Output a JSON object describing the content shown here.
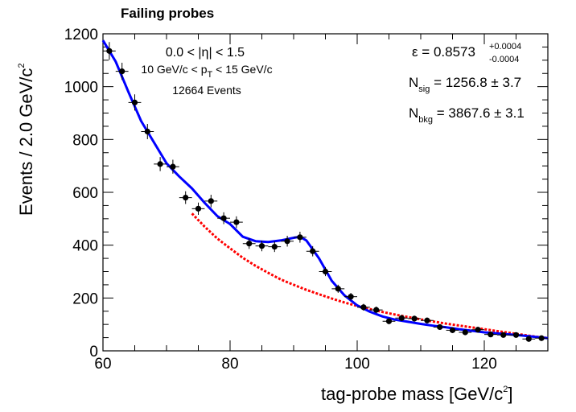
{
  "chart_data": {
    "type": "scatter",
    "title": "Failing probes",
    "xlabel": "tag-probe mass [GeV/c",
    "xlabel_sup": "2",
    "xlabel_tail": "]",
    "ylabel": "Events / 2.0 GeV/c",
    "ylabel_sup": "2",
    "xlim": [
      60,
      130
    ],
    "ylim": [
      0,
      1200
    ],
    "x_ticks": [
      60,
      80,
      100,
      120
    ],
    "y_ticks": [
      0,
      200,
      400,
      600,
      800,
      1000,
      1200
    ],
    "grid": false,
    "annotations": {
      "eta_cut": "0.0 < |η| < 1.5",
      "pt_cut_a": "10 GeV/c < p",
      "pt_cut_sub": "T",
      "pt_cut_b": " < 15 GeV/c",
      "events": "12664 Events",
      "eff_label": "ε = 0.8573",
      "eff_up": "+0.0004",
      "eff_down": "-0.0004",
      "nsig_label": "N",
      "nsig_sub": "sig",
      "nsig_value": " = 1256.8  ± 3.7",
      "nbkg_label": "N",
      "nbkg_sub": "bkg",
      "nbkg_value": " = 3867.6  ± 3.1"
    },
    "data_points": {
      "x": [
        61,
        63,
        65,
        67,
        69,
        71,
        73,
        75,
        77,
        79,
        81,
        83,
        85,
        87,
        89,
        91,
        93,
        95,
        97,
        99,
        101,
        103,
        105,
        107,
        109,
        111,
        113,
        115,
        117,
        119,
        121,
        123,
        125,
        127,
        129
      ],
      "y": [
        1135,
        1058,
        940,
        830,
        707,
        697,
        580,
        538,
        567,
        502,
        487,
        406,
        397,
        394,
        415,
        430,
        377,
        300,
        235,
        205,
        165,
        155,
        112,
        124,
        122,
        115,
        90,
        78,
        70,
        80,
        62,
        60,
        60,
        45,
        48
      ]
    },
    "series": [
      {
        "name": "",
        "color": "#0000ff",
        "style": "solid",
        "x": [
          60,
          62,
          64,
          66,
          68,
          70,
          72,
          74,
          76,
          78,
          80,
          82,
          84,
          86,
          88,
          90,
          91,
          92,
          94,
          96,
          98,
          100,
          102,
          104,
          106,
          108,
          110,
          112,
          114,
          116,
          118,
          120,
          122,
          124,
          126,
          128,
          130
        ],
        "y": [
          1175,
          1095,
          980,
          870,
          790,
          710,
          660,
          615,
          560,
          510,
          480,
          432,
          415,
          412,
          418,
          428,
          432,
          418,
          350,
          265,
          210,
          172,
          148,
          130,
          118,
          110,
          102,
          95,
          89,
          82,
          76,
          70,
          66,
          62,
          58,
          53,
          48
        ]
      },
      {
        "name": "",
        "color": "#ff0000",
        "style": "dashed",
        "x": [
          74,
          76,
          78,
          80,
          82,
          84,
          86,
          88,
          90,
          92,
          94,
          96,
          98,
          100,
          102,
          104,
          106,
          108,
          110,
          112,
          114,
          116,
          118,
          120,
          122,
          124,
          126,
          128,
          130
        ],
        "y": [
          520,
          470,
          425,
          388,
          352,
          322,
          295,
          270,
          250,
          231,
          214,
          198,
          183,
          170,
          158,
          147,
          137,
          128,
          119,
          111,
          103,
          96,
          89,
          82,
          75,
          68,
          61,
          54,
          48
        ]
      }
    ]
  }
}
